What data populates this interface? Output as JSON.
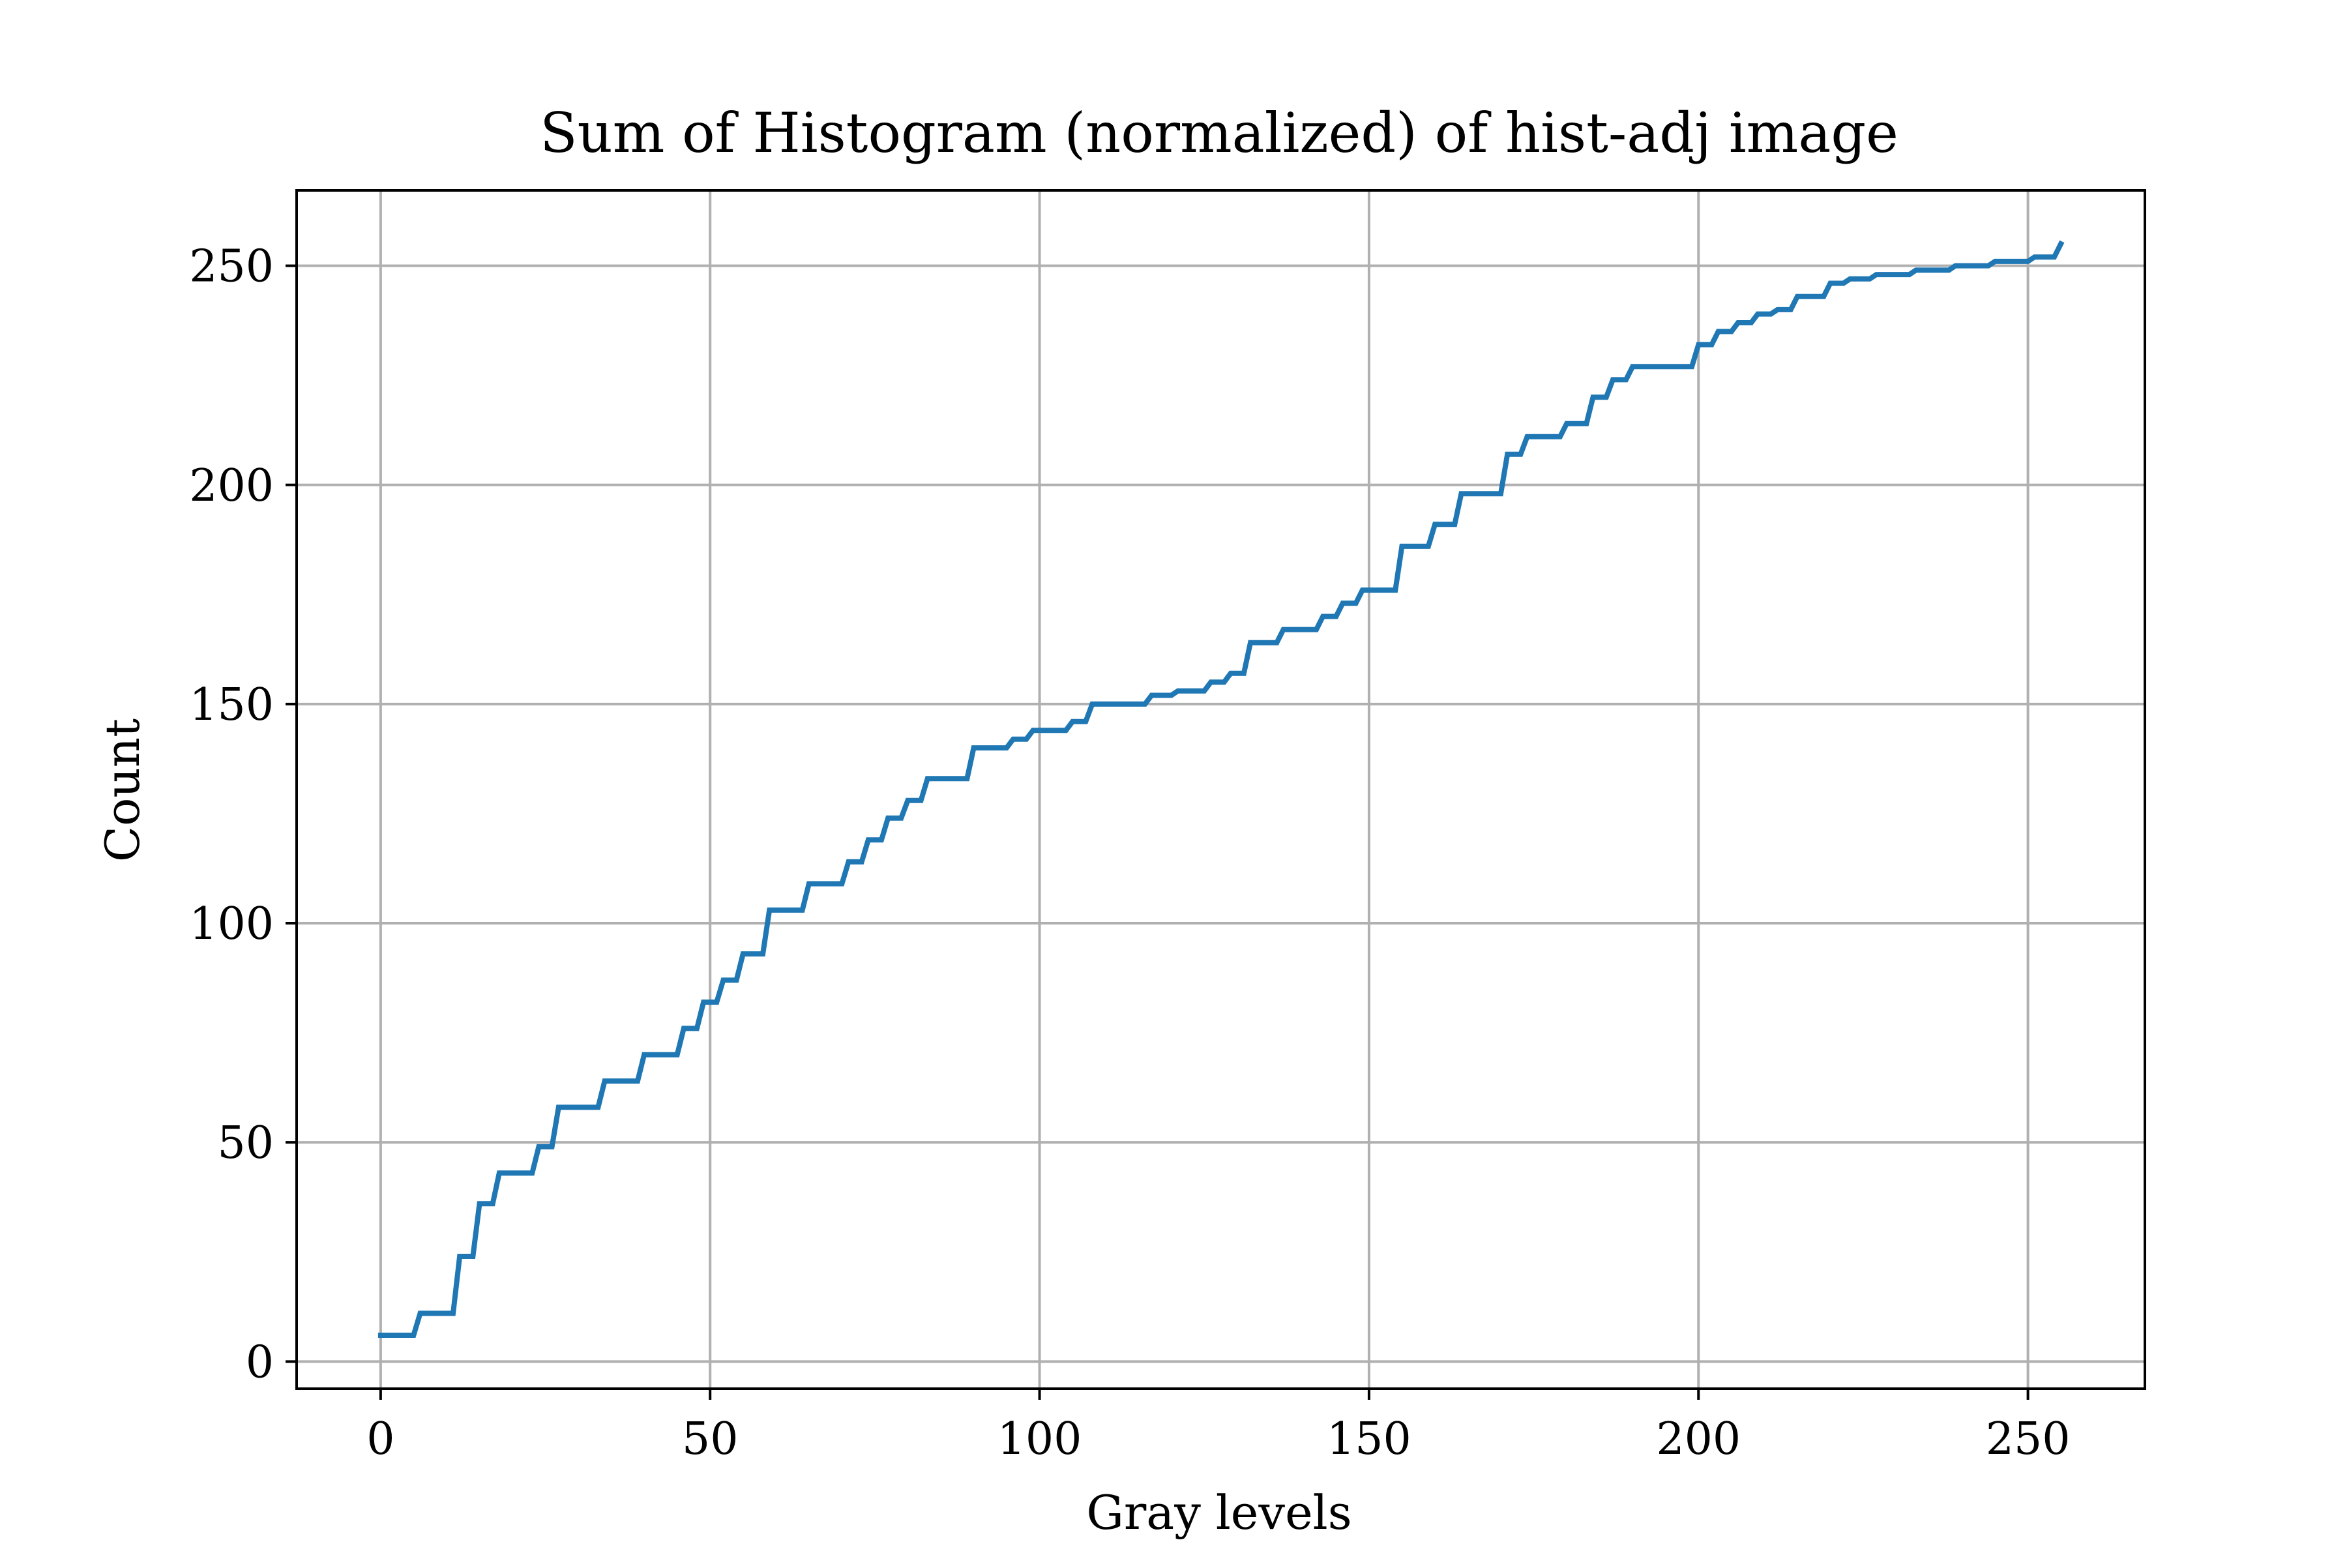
{
  "colors": {
    "line": "#1f77b4",
    "grid": "#b0b0b0",
    "axes": "#000000",
    "background": "#ffffff"
  },
  "chart_data": {
    "type": "line",
    "title": "Sum of Histogram (normalized) of hist-adj image",
    "xlabel": "Gray levels",
    "ylabel": "Count",
    "xlim": [
      -12.75,
      267.75
    ],
    "ylim": [
      -6.2,
      267.2
    ],
    "xticks": [
      0,
      50,
      100,
      150,
      200,
      250
    ],
    "yticks": [
      0,
      50,
      100,
      150,
      200,
      250
    ],
    "xtick_labels": [
      "0",
      "50",
      "100",
      "150",
      "200",
      "250"
    ],
    "ytick_labels": [
      "0",
      "50",
      "100",
      "150",
      "200",
      "250"
    ],
    "grid": true,
    "legend": false,
    "step_values": [
      [
        0,
        6
      ],
      [
        6,
        11
      ],
      [
        12,
        24
      ],
      [
        15,
        36
      ],
      [
        18,
        43
      ],
      [
        24,
        49
      ],
      [
        27,
        58
      ],
      [
        34,
        64
      ],
      [
        40,
        70
      ],
      [
        46,
        76
      ],
      [
        49,
        82
      ],
      [
        52,
        87
      ],
      [
        55,
        93
      ],
      [
        59,
        103
      ],
      [
        65,
        109
      ],
      [
        71,
        114
      ],
      [
        74,
        119
      ],
      [
        77,
        124
      ],
      [
        80,
        128
      ],
      [
        83,
        133
      ],
      [
        90,
        140
      ],
      [
        96,
        142
      ],
      [
        99,
        144
      ],
      [
        105,
        146
      ],
      [
        108,
        150
      ],
      [
        117,
        152
      ],
      [
        121,
        153
      ],
      [
        126,
        155
      ],
      [
        129,
        157
      ],
      [
        132,
        164
      ],
      [
        137,
        167
      ],
      [
        143,
        170
      ],
      [
        146,
        173
      ],
      [
        149,
        176
      ],
      [
        155,
        186
      ],
      [
        160,
        191
      ],
      [
        164,
        198
      ],
      [
        171,
        207
      ],
      [
        174,
        211
      ],
      [
        180,
        214
      ],
      [
        184,
        220
      ],
      [
        187,
        224
      ],
      [
        190,
        227
      ],
      [
        200,
        232
      ],
      [
        203,
        235
      ],
      [
        206,
        237
      ],
      [
        209,
        239
      ],
      [
        212,
        240
      ],
      [
        215,
        243
      ],
      [
        220,
        246
      ],
      [
        223,
        247
      ],
      [
        227,
        248
      ],
      [
        233,
        249
      ],
      [
        239,
        250
      ],
      [
        245,
        251
      ],
      [
        251,
        252
      ],
      [
        255,
        255
      ]
    ]
  }
}
